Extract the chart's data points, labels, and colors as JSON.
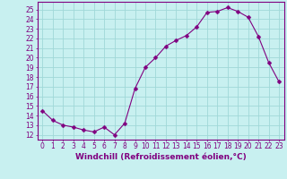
{
  "x": [
    0,
    1,
    2,
    3,
    4,
    5,
    6,
    7,
    8,
    9,
    10,
    11,
    12,
    13,
    14,
    15,
    16,
    17,
    18,
    19,
    20,
    21,
    22,
    23
  ],
  "y": [
    14.5,
    13.5,
    13.0,
    12.8,
    12.5,
    12.3,
    12.8,
    12.0,
    13.2,
    16.8,
    19.0,
    20.0,
    21.2,
    21.8,
    22.3,
    23.2,
    24.7,
    24.8,
    25.2,
    24.8,
    24.2,
    22.2,
    19.5,
    17.5
  ],
  "line_color": "#800080",
  "marker": "D",
  "marker_size": 2.5,
  "bg_color": "#c8f0f0",
  "grid_color": "#a0d8d8",
  "xlabel": "Windchill (Refroidissement éolien,°C)",
  "xlim": [
    -0.5,
    23.5
  ],
  "ylim": [
    11.5,
    25.8
  ],
  "yticks": [
    12,
    13,
    14,
    15,
    16,
    17,
    18,
    19,
    20,
    21,
    22,
    23,
    24,
    25
  ],
  "xticks": [
    0,
    1,
    2,
    3,
    4,
    5,
    6,
    7,
    8,
    9,
    10,
    11,
    12,
    13,
    14,
    15,
    16,
    17,
    18,
    19,
    20,
    21,
    22,
    23
  ],
  "label_color": "#800080",
  "tick_color": "#800080",
  "spine_color": "#800080",
  "font_size": 5.5,
  "xlabel_fontsize": 6.5
}
